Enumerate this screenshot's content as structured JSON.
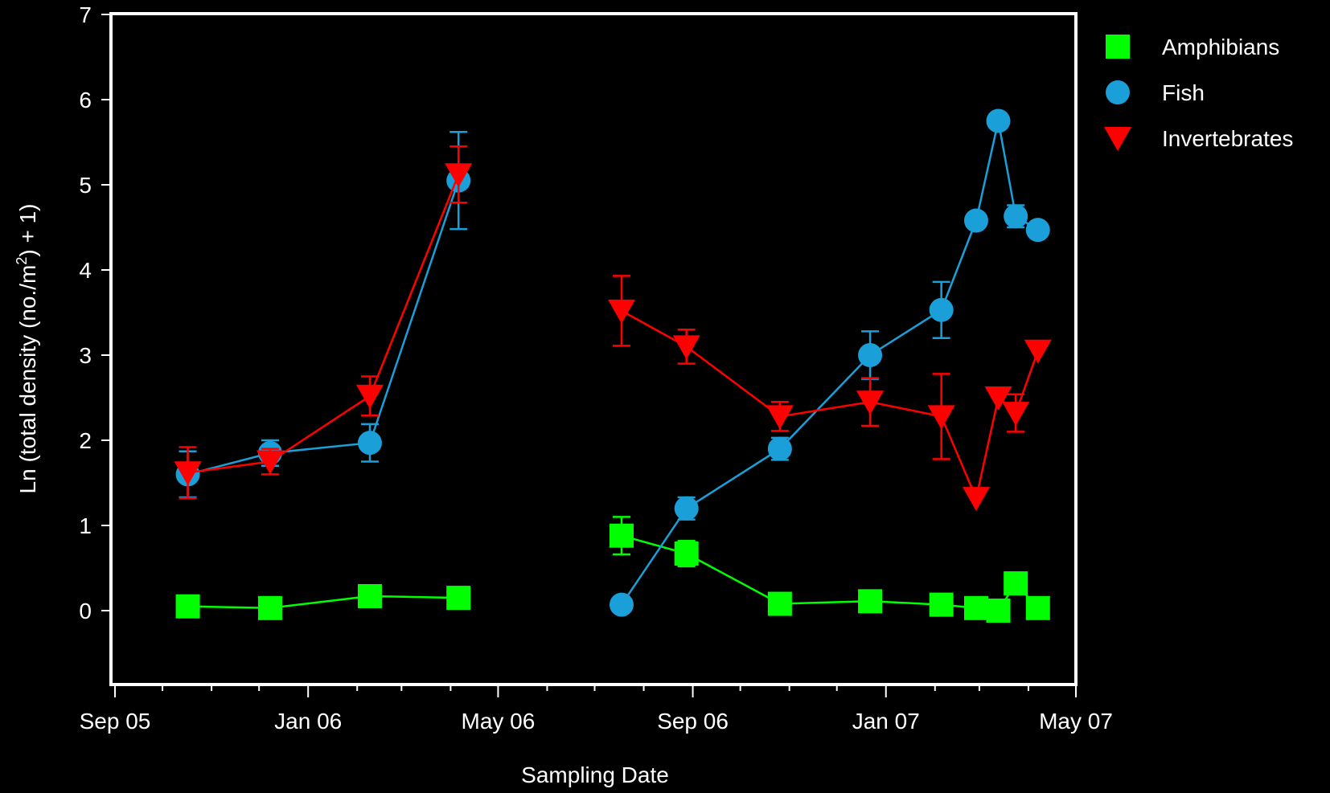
{
  "chart_data": {
    "type": "line",
    "title": "",
    "xlabel": "Sampling Date",
    "ylabel": "Ln (total density (no./m²) + 1)",
    "ylabel_parts": {
      "before": "Ln (total density (no./m",
      "sup": "2",
      "after": ") + 1)"
    },
    "x_axis": {
      "type": "date",
      "range": [
        "2005-09-01",
        "2007-05-01"
      ],
      "ticks": [
        {
          "date": "2005-09-01",
          "label": "Sep 05"
        },
        {
          "date": "2006-01-01",
          "label": "Jan 06"
        },
        {
          "date": "2006-05-01",
          "label": "May 06"
        },
        {
          "date": "2006-09-01",
          "label": "Sep 06"
        },
        {
          "date": "2007-01-01",
          "label": "Jan 07"
        },
        {
          "date": "2007-05-01",
          "label": "May 07"
        }
      ],
      "minor_ticks": [
        "2005-10-01",
        "2005-11-01",
        "2005-12-01",
        "2006-02-01",
        "2006-03-01",
        "2006-04-01",
        "2006-06-01",
        "2006-07-01",
        "2006-08-01",
        "2006-10-01",
        "2006-11-01",
        "2006-12-01",
        "2007-02-01",
        "2007-03-01",
        "2007-04-01"
      ]
    },
    "y_axis": {
      "range": [
        -0.9,
        7
      ],
      "ticks": [
        0,
        1,
        2,
        3,
        4,
        5,
        6,
        7
      ]
    },
    "grid": false,
    "legend": {
      "position": "right-top"
    },
    "series": [
      {
        "name": "Amphibians",
        "color": "#00ff00",
        "marker": "square",
        "segments": [
          [
            {
              "x": "2005-10-17",
              "y": 0.05
            },
            {
              "x": "2005-12-08",
              "y": 0.03
            },
            {
              "x": "2006-02-09",
              "y": 0.17
            },
            {
              "x": "2006-04-06",
              "y": 0.15,
              "err": 0.1
            }
          ],
          [
            {
              "x": "2006-07-18",
              "y": 0.88,
              "err": 0.22
            },
            {
              "x": "2006-08-28",
              "y": 0.67,
              "err": 0.15
            },
            {
              "x": "2006-10-26",
              "y": 0.08
            },
            {
              "x": "2006-12-22",
              "y": 0.11
            },
            {
              "x": "2007-02-05",
              "y": 0.07
            },
            {
              "x": "2007-02-27",
              "y": 0.03
            },
            {
              "x": "2007-03-13",
              "y": 0.0
            },
            {
              "x": "2007-03-24",
              "y": 0.32
            },
            {
              "x": "2007-04-07",
              "y": 0.03
            }
          ]
        ]
      },
      {
        "name": "Fish",
        "color": "#1a9fd8",
        "marker": "circle",
        "segments": [
          [
            {
              "x": "2005-10-17",
              "y": 1.6,
              "err": 0.27
            },
            {
              "x": "2005-12-08",
              "y": 1.85,
              "err": 0.15
            },
            {
              "x": "2006-02-09",
              "y": 1.97,
              "err": 0.22
            },
            {
              "x": "2006-04-06",
              "y": 5.05,
              "err": 0.57
            }
          ],
          [
            {
              "x": "2006-07-18",
              "y": 0.07
            },
            {
              "x": "2006-08-28",
              "y": 1.2,
              "err": 0.13
            },
            {
              "x": "2006-10-26",
              "y": 1.9,
              "err": 0.13
            },
            {
              "x": "2006-12-22",
              "y": 3.0,
              "err": 0.28
            },
            {
              "x": "2007-02-05",
              "y": 3.53,
              "err": 0.33
            },
            {
              "x": "2007-02-27",
              "y": 4.58
            },
            {
              "x": "2007-03-13",
              "y": 5.75
            },
            {
              "x": "2007-03-24",
              "y": 4.63,
              "err": 0.13
            },
            {
              "x": "2007-04-07",
              "y": 4.47
            }
          ]
        ]
      },
      {
        "name": "Invertebrates",
        "color": "#ff0000",
        "marker": "triangle-down",
        "segments": [
          [
            {
              "x": "2005-10-17",
              "y": 1.62,
              "err": 0.3
            },
            {
              "x": "2005-12-08",
              "y": 1.75,
              "err": 0.15
            },
            {
              "x": "2006-02-09",
              "y": 2.52,
              "err": 0.23
            },
            {
              "x": "2006-04-06",
              "y": 5.12,
              "err": 0.33
            }
          ],
          [
            {
              "x": "2006-07-18",
              "y": 3.52,
              "err": 0.41
            },
            {
              "x": "2006-08-28",
              "y": 3.1,
              "err": 0.2
            },
            {
              "x": "2006-10-26",
              "y": 2.28,
              "err": 0.17
            },
            {
              "x": "2006-12-22",
              "y": 2.45,
              "err": 0.28
            },
            {
              "x": "2007-02-05",
              "y": 2.28,
              "err": 0.5
            },
            {
              "x": "2007-02-27",
              "y": 1.32
            },
            {
              "x": "2007-03-13",
              "y": 2.5
            },
            {
              "x": "2007-03-24",
              "y": 2.32,
              "err": 0.22
            },
            {
              "x": "2007-04-07",
              "y": 3.05
            }
          ]
        ]
      }
    ]
  }
}
